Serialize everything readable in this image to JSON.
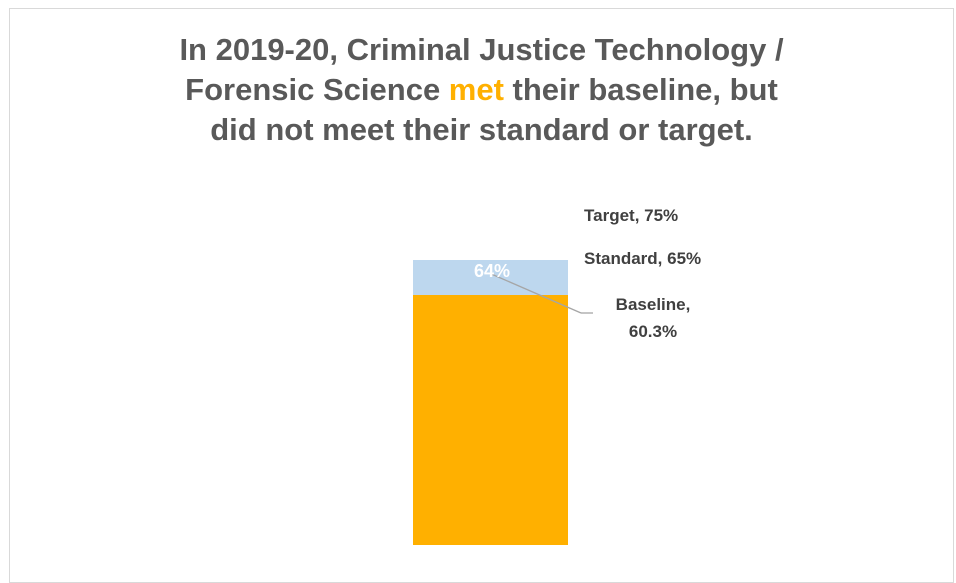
{
  "title": {
    "part1": "In 2019-20, Criminal Justice Technology /",
    "part2a": "Forensic Science ",
    "highlight": "met",
    "part2b": " their baseline, but",
    "part3": "did not meet their standard or target."
  },
  "colors": {
    "bar": "#ffb000",
    "band": "#bdd7ee",
    "title_text": "#595959",
    "highlight": "#ffb000",
    "label_text": "#404040",
    "leader": "#a6a6a6"
  },
  "chart_data": {
    "type": "bar",
    "categories": [
      ""
    ],
    "values": [
      64
    ],
    "data_labels": [
      "64%"
    ],
    "ylim": [
      0,
      75
    ],
    "grid": false,
    "reference_levels": [
      {
        "name": "Target",
        "value": 75,
        "label": "Target, 75%"
      },
      {
        "name": "Standard",
        "value": 65,
        "label": "Standard, 65%"
      },
      {
        "name": "Baseline",
        "value": 60.3,
        "label_line1": "Baseline,",
        "label_line2": "60.3%"
      }
    ]
  }
}
